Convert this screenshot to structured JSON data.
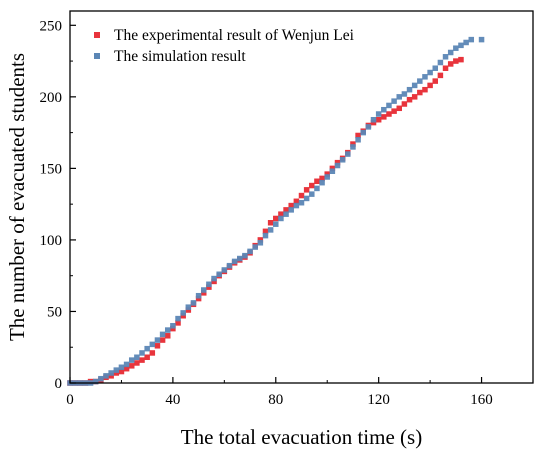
{
  "chart_data": {
    "type": "scatter",
    "xlabel": "The total evacuation time (s)",
    "ylabel": "The number of evacuated students",
    "xlim": [
      0,
      180
    ],
    "ylim": [
      0,
      260
    ],
    "xticks": [
      0,
      40,
      80,
      120,
      160
    ],
    "yticks": [
      0,
      50,
      100,
      150,
      200,
      250
    ],
    "grid": false,
    "legend_position": "top-left",
    "series": [
      {
        "name": "The experimental result of Wenjun Lei",
        "color": "#e8343c",
        "marker": "square",
        "points": [
          [
            0,
            0
          ],
          [
            2,
            0
          ],
          [
            4,
            0
          ],
          [
            6,
            0
          ],
          [
            8,
            1
          ],
          [
            10,
            1
          ],
          [
            12,
            2
          ],
          [
            14,
            4
          ],
          [
            16,
            5
          ],
          [
            18,
            7
          ],
          [
            20,
            8
          ],
          [
            22,
            10
          ],
          [
            24,
            12
          ],
          [
            26,
            14
          ],
          [
            28,
            16
          ],
          [
            30,
            18
          ],
          [
            32,
            21
          ],
          [
            34,
            26
          ],
          [
            36,
            30
          ],
          [
            38,
            33
          ],
          [
            40,
            38
          ],
          [
            42,
            42
          ],
          [
            44,
            47
          ],
          [
            46,
            51
          ],
          [
            48,
            55
          ],
          [
            50,
            59
          ],
          [
            52,
            63
          ],
          [
            54,
            67
          ],
          [
            56,
            71
          ],
          [
            58,
            75
          ],
          [
            60,
            78
          ],
          [
            62,
            81
          ],
          [
            64,
            84
          ],
          [
            66,
            86
          ],
          [
            68,
            88
          ],
          [
            70,
            91
          ],
          [
            72,
            96
          ],
          [
            74,
            100
          ],
          [
            76,
            106
          ],
          [
            78,
            112
          ],
          [
            80,
            115
          ],
          [
            82,
            118
          ],
          [
            84,
            121
          ],
          [
            86,
            124
          ],
          [
            88,
            127
          ],
          [
            90,
            131
          ],
          [
            92,
            135
          ],
          [
            94,
            138
          ],
          [
            96,
            141
          ],
          [
            98,
            143
          ],
          [
            100,
            146
          ],
          [
            102,
            150
          ],
          [
            104,
            154
          ],
          [
            106,
            157
          ],
          [
            108,
            161
          ],
          [
            110,
            167
          ],
          [
            112,
            173
          ],
          [
            114,
            176
          ],
          [
            116,
            180
          ],
          [
            118,
            182
          ],
          [
            120,
            184
          ],
          [
            122,
            186
          ],
          [
            124,
            188
          ],
          [
            126,
            190
          ],
          [
            128,
            192
          ],
          [
            130,
            195
          ],
          [
            132,
            198
          ],
          [
            134,
            200
          ],
          [
            136,
            203
          ],
          [
            138,
            205
          ],
          [
            140,
            208
          ],
          [
            142,
            211
          ],
          [
            144,
            215
          ],
          [
            146,
            220
          ],
          [
            148,
            223
          ],
          [
            150,
            225
          ],
          [
            152,
            226
          ]
        ]
      },
      {
        "name": "The simulation result",
        "color": "#5b86b5",
        "marker": "square",
        "points": [
          [
            0,
            0
          ],
          [
            2,
            0
          ],
          [
            4,
            0
          ],
          [
            6,
            0
          ],
          [
            8,
            0
          ],
          [
            10,
            1
          ],
          [
            12,
            3
          ],
          [
            14,
            5
          ],
          [
            16,
            7
          ],
          [
            18,
            9
          ],
          [
            20,
            11
          ],
          [
            22,
            13
          ],
          [
            24,
            16
          ],
          [
            26,
            18
          ],
          [
            28,
            21
          ],
          [
            30,
            24
          ],
          [
            32,
            27
          ],
          [
            34,
            30
          ],
          [
            36,
            34
          ],
          [
            38,
            37
          ],
          [
            40,
            40
          ],
          [
            42,
            45
          ],
          [
            44,
            49
          ],
          [
            46,
            53
          ],
          [
            48,
            56
          ],
          [
            50,
            61
          ],
          [
            52,
            65
          ],
          [
            54,
            69
          ],
          [
            56,
            73
          ],
          [
            58,
            76
          ],
          [
            60,
            79
          ],
          [
            62,
            82
          ],
          [
            64,
            85
          ],
          [
            66,
            87
          ],
          [
            68,
            89
          ],
          [
            70,
            92
          ],
          [
            72,
            95
          ],
          [
            74,
            98
          ],
          [
            76,
            103
          ],
          [
            78,
            107
          ],
          [
            80,
            111
          ],
          [
            82,
            115
          ],
          [
            84,
            118
          ],
          [
            86,
            121
          ],
          [
            88,
            124
          ],
          [
            90,
            126
          ],
          [
            92,
            129
          ],
          [
            94,
            132
          ],
          [
            96,
            136
          ],
          [
            98,
            140
          ],
          [
            100,
            144
          ],
          [
            102,
            148
          ],
          [
            104,
            152
          ],
          [
            106,
            156
          ],
          [
            108,
            160
          ],
          [
            110,
            165
          ],
          [
            112,
            170
          ],
          [
            114,
            175
          ],
          [
            116,
            179
          ],
          [
            118,
            184
          ],
          [
            120,
            188
          ],
          [
            122,
            191
          ],
          [
            124,
            194
          ],
          [
            126,
            197
          ],
          [
            128,
            200
          ],
          [
            130,
            202
          ],
          [
            132,
            205
          ],
          [
            134,
            208
          ],
          [
            136,
            211
          ],
          [
            138,
            214
          ],
          [
            140,
            217
          ],
          [
            142,
            220
          ],
          [
            144,
            224
          ],
          [
            146,
            228
          ],
          [
            148,
            231
          ],
          [
            150,
            234
          ],
          [
            152,
            236
          ],
          [
            154,
            238
          ],
          [
            156,
            240
          ],
          [
            160,
            240
          ]
        ]
      }
    ]
  }
}
